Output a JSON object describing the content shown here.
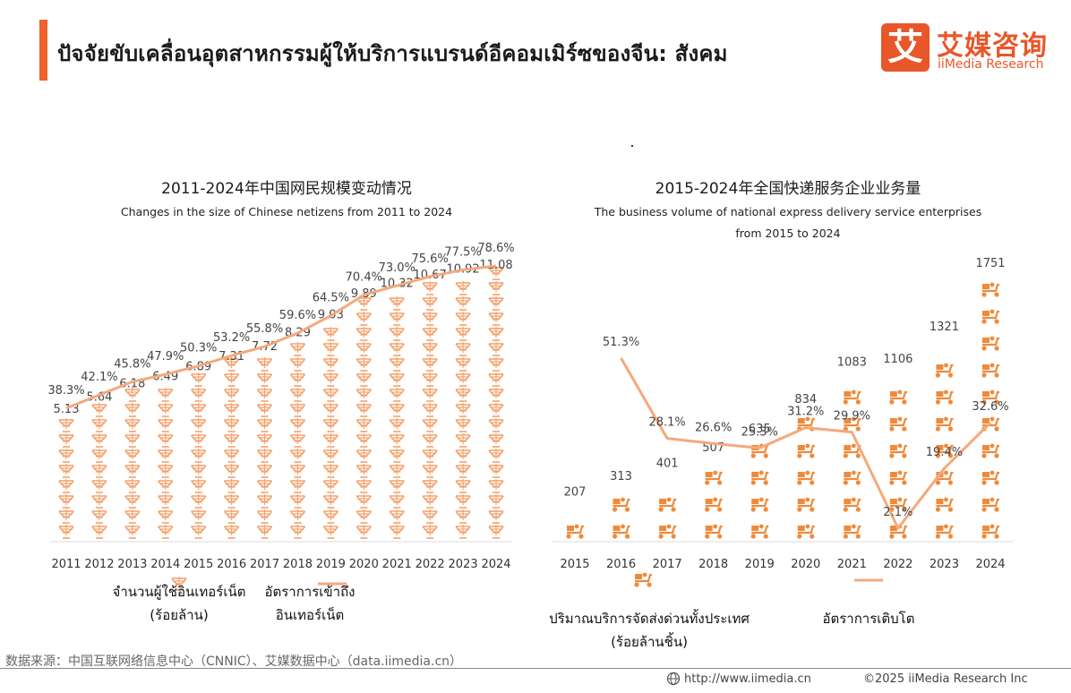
{
  "header": {
    "title": "ปัจจัยขับเคลื่อนอุตสาหกรรมผู้ให้บริการแบรนด์อีคอมเมิร์ซของจีน: สังคม",
    "accent_color": "#f0622d"
  },
  "logo": {
    "mark": "艾",
    "name_cn": "艾媒咨询",
    "name_en": "iiMedia Research",
    "color": "#e8572a"
  },
  "chart_data": [
    {
      "type": "bar",
      "title": "2011-2024年中国网民规模变动情况",
      "subtitle": "Changes in the size of Chinese netizens from 2011 to 2024",
      "categories": [
        "2011",
        "2012",
        "2013",
        "2014",
        "2015",
        "2016",
        "2017",
        "2018",
        "2019",
        "2020",
        "2021",
        "2022",
        "2023",
        "2024"
      ],
      "series": [
        {
          "name": "จำนวนผู้ใช้อินเทอร์เน็ต (ร้อยล้าน)",
          "type": "pictogram-bar",
          "icon": "globe-stand-icon",
          "values": [
            5.13,
            5.64,
            6.18,
            6.49,
            6.89,
            7.31,
            7.72,
            8.29,
            9.03,
            9.89,
            10.32,
            10.67,
            10.92,
            11.08
          ],
          "labels": [
            "5.13",
            "5.64",
            "6.18",
            "6.49",
            "6.89",
            "7.31",
            "7.72",
            "8.29",
            "9.03",
            "9.89",
            "10.32",
            "10.67",
            "10.92",
            "11.08"
          ]
        },
        {
          "name": "อัตราการเข้าถึงอินเทอร์เน็ต",
          "type": "line",
          "values": [
            38.3,
            42.1,
            45.8,
            47.9,
            50.3,
            53.2,
            55.8,
            59.6,
            64.5,
            70.4,
            73.0,
            75.6,
            77.5,
            78.6
          ],
          "labels": [
            "38.3%",
            "42.1%",
            "45.8%",
            "47.9%",
            "50.3%",
            "53.2%",
            "55.8%",
            "59.6%",
            "64.5%",
            "70.4%",
            "73.0%",
            "75.6%",
            "77.5%",
            "78.6%"
          ]
        }
      ],
      "legend": {
        "bar_line1": "จำนวนผู้ใช้อินเทอร์เน็ต",
        "bar_line2": "(ร้อยล้าน)",
        "line_line1": "อัตราการเข้าถึง",
        "line_line2": "อินเทอร์เน็ต",
        "position": "bottom"
      },
      "bar_color": "#f5a06a",
      "line_color": "#f4a97c"
    },
    {
      "type": "bar",
      "title": "2015-2024年全国快递服务企业业务量",
      "subtitle_line1": "The business volume of national express delivery service enterprises",
      "subtitle_line2": "from 2015 to 2024",
      "categories": [
        "2015",
        "2016",
        "2017",
        "2018",
        "2019",
        "2020",
        "2021",
        "2022",
        "2023",
        "2024"
      ],
      "series": [
        {
          "name": "ปริมาณบริการจัดส่งด่วนทั้งประเทศ (ร้อยล้านชิ้น)",
          "type": "pictogram-bar",
          "icon": "delivery-scooter-icon",
          "values": [
            207,
            313,
            401,
            507,
            635,
            834,
            1083,
            1106,
            1321,
            1751
          ],
          "labels": [
            "207",
            "313",
            "401",
            "507",
            "635",
            "834",
            "1083",
            "1106",
            "1321",
            "1751"
          ]
        },
        {
          "name": "อัตราการเติบโต",
          "type": "line",
          "values": [
            null,
            51.3,
            28.1,
            26.6,
            25.3,
            31.2,
            29.9,
            2.1,
            19.4,
            32.6
          ],
          "labels": [
            "",
            "51.3%",
            "28.1%",
            "26.6%",
            "25.3%",
            "31.2%",
            "29.9%",
            "2.1%",
            "19.4%",
            "32.6%"
          ]
        }
      ],
      "legend": {
        "bar_line1": "ปริมาณบริการจัดส่งด่วนทั้งประเทศ",
        "bar_line2": "(ร้อยล้านชิ้น)",
        "line_line1": "อัตราการเติบโต",
        "position": "bottom"
      },
      "bar_color": "#f08a3a",
      "line_color": "#f4a97c"
    }
  ],
  "footer": {
    "source": "数据来源：中国互联网络信息中心（CNNIC）、艾媒数据中心（data.iimedia.cn）",
    "url": "http://www.iimedia.cn",
    "copyright": "©2025  iiMedia Research  Inc"
  }
}
